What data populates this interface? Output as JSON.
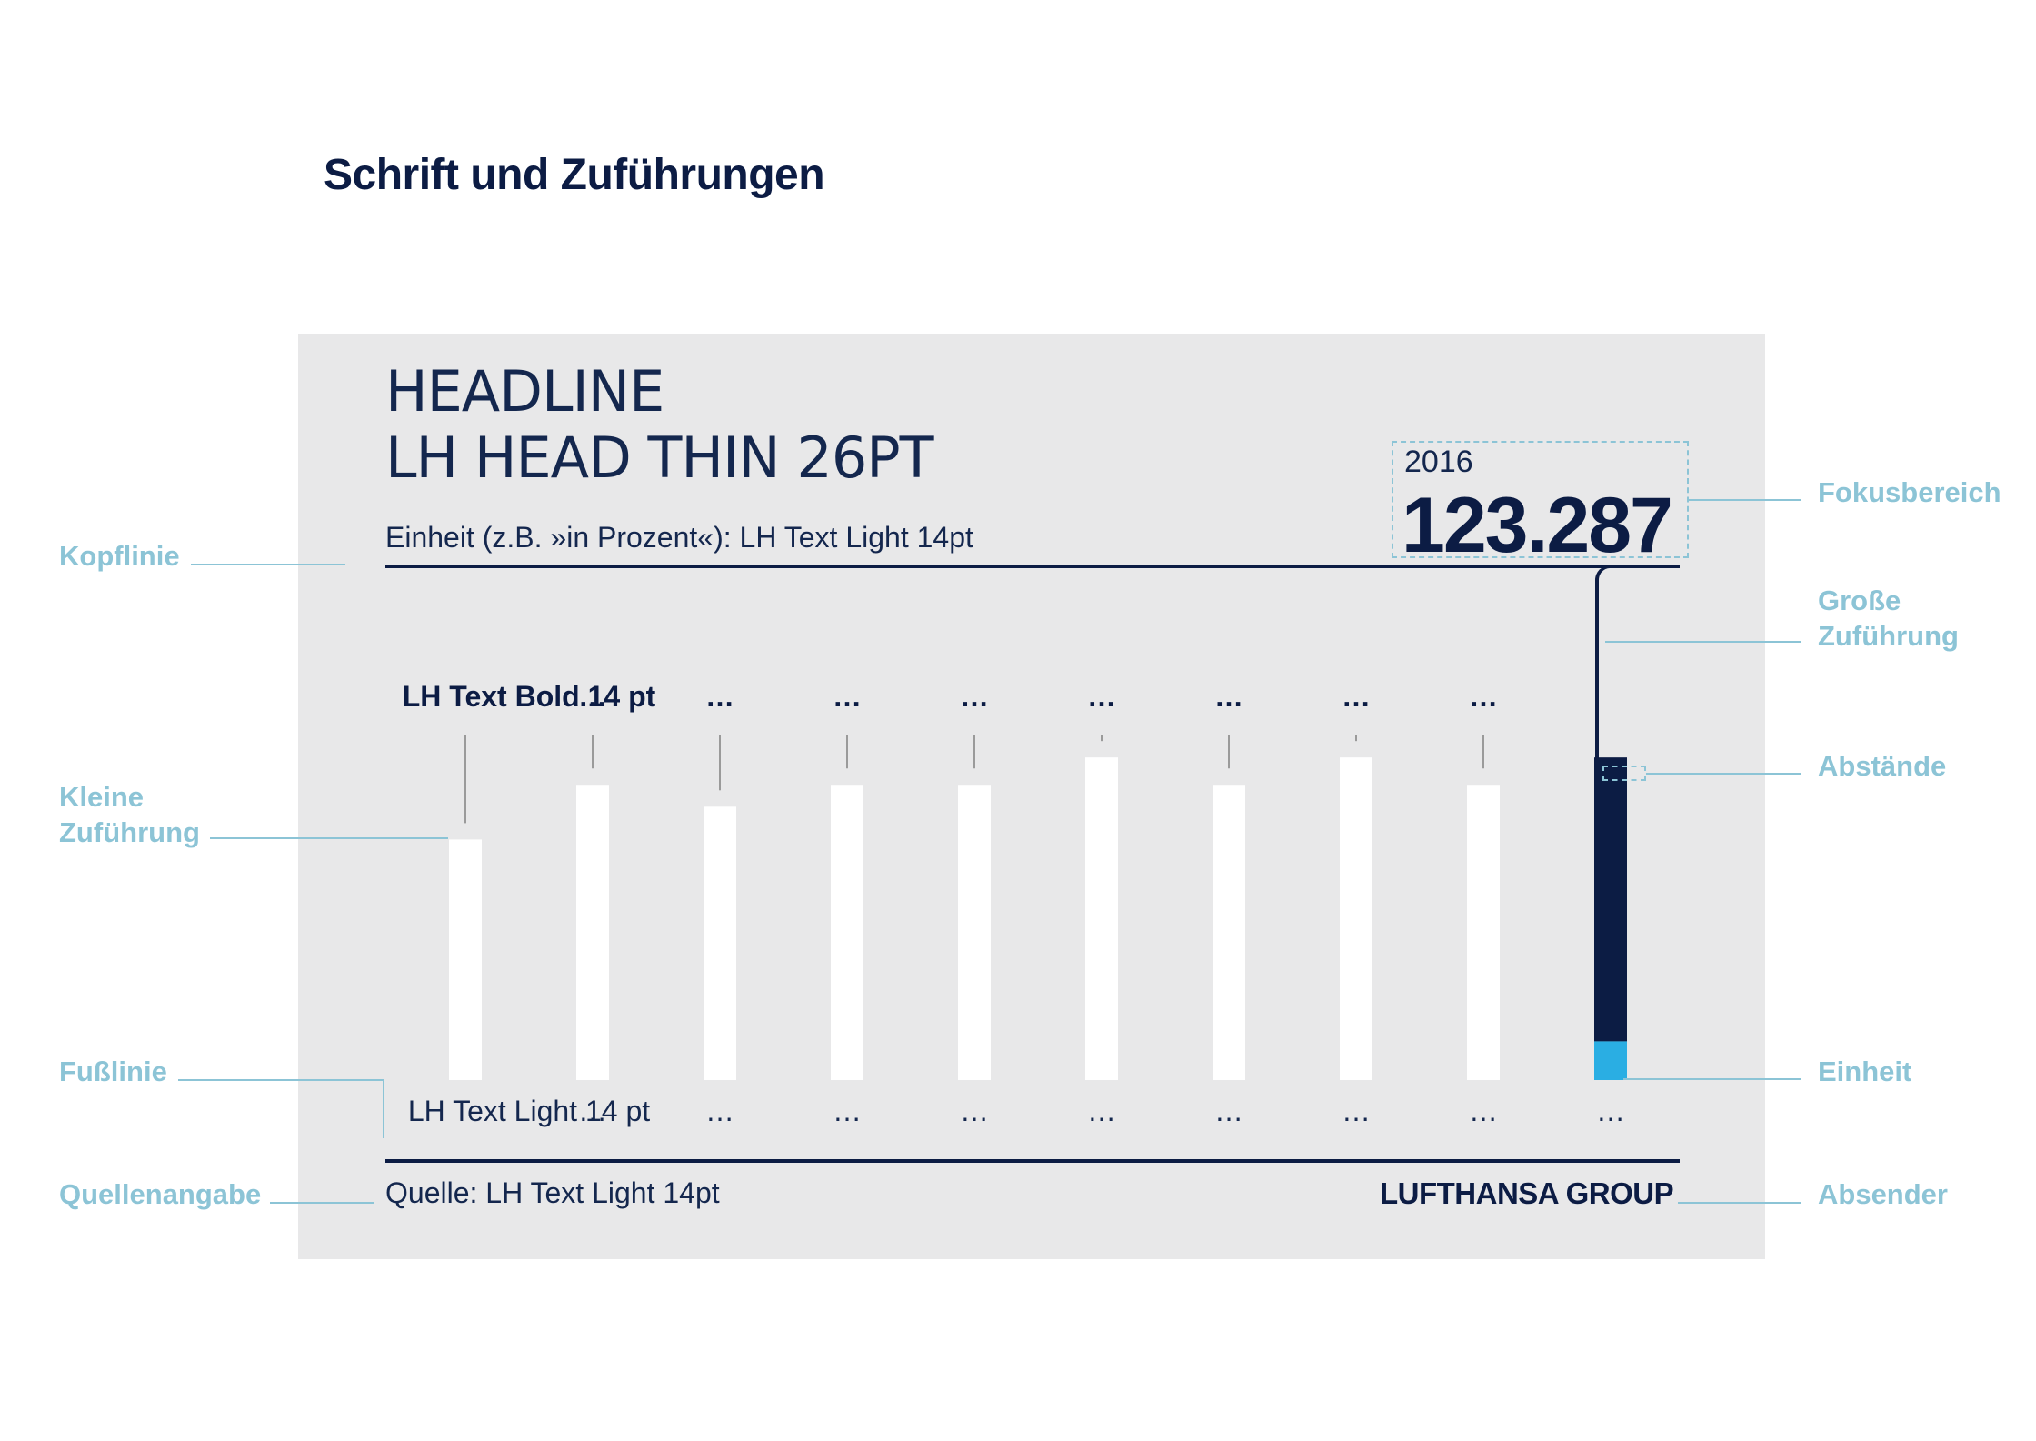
{
  "page": {
    "title": "Schrift und Zuführungen"
  },
  "panel": {
    "headline_line1": "HEADLINE",
    "headline_line2": "LH HEAD THIN 26PT",
    "unit_text": "Einheit (z.B. »in Prozent«): LH Text Light 14pt",
    "focus_year": "2016",
    "focus_value": "123.287",
    "source_text": "Quelle: LH Text Light 14pt",
    "sender": "LUFTHANSA GROUP"
  },
  "annotations": {
    "kopflinie": "Kopflinie",
    "kleine_zufuehrung_1": "Kleine",
    "kleine_zufuehrung_2": "Zuführung",
    "fusslinie": "Fußlinie",
    "quellenangabe": "Quellenangabe",
    "fokusbereich": "Fokusbereich",
    "grosse_zufuehrung_1": "Große",
    "grosse_zufuehrung_2": "Zuführung",
    "abstaende": "Abstände",
    "einheit": "Einheit",
    "absender": "Absender"
  },
  "chart_data": {
    "type": "bar",
    "categories": [
      "LH Text Light 14 pt",
      "…",
      "…",
      "…",
      "…",
      "…",
      "…",
      "…",
      "…",
      "…"
    ],
    "top_labels": [
      "LH Text Bold 14 pt",
      "…",
      "…",
      "…",
      "…",
      "…",
      "…",
      "…",
      "…",
      ""
    ],
    "values": [
      44,
      54,
      50,
      54,
      54,
      59,
      54,
      59,
      54,
      59
    ],
    "highlight_index": 9,
    "highlight_fraction": 0.12,
    "colors": {
      "bar": "#ffffff",
      "highlight": "#0c1c44",
      "highlight_unit": "#2aaee3",
      "annotation": "#8cc4d6",
      "lead_line": "#9a9a9a"
    }
  }
}
